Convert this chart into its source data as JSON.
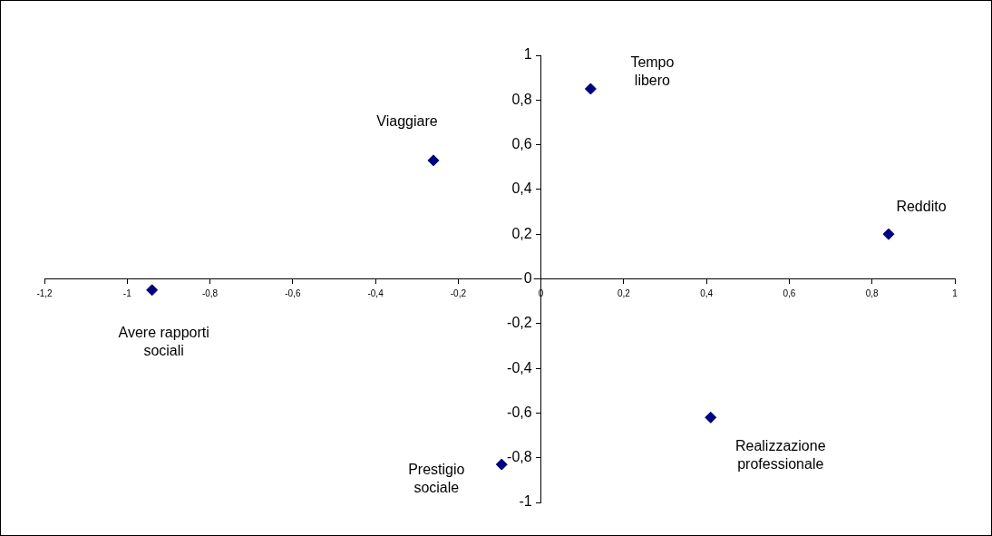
{
  "chart_data": {
    "type": "scatter",
    "marker": "diamond",
    "grid": false,
    "x": [
      0.12,
      -0.26,
      0.84,
      -0.94,
      0.41,
      -0.095
    ],
    "series": [
      {
        "color": "#000080",
        "values": [
          0.85,
          0.53,
          0.2,
          -0.05,
          -0.62,
          -0.83
        ]
      }
    ],
    "xlim": [
      -1.2,
      1
    ],
    "ylim": [
      -1,
      1
    ],
    "xticks": [
      {
        "value": -1.2,
        "label": "-1,2"
      },
      -1,
      {
        "value": -0.8,
        "label": "-0,8"
      },
      {
        "value": -0.6,
        "label": "-0,6"
      },
      {
        "value": -0.4,
        "label": "-0,4"
      },
      {
        "value": -0.2,
        "label": "-0,2"
      },
      0,
      {
        "value": 0.2,
        "label": "0,2"
      },
      {
        "value": 0.4,
        "label": "0,4"
      },
      {
        "value": 0.6,
        "label": "0,6"
      },
      {
        "value": 0.8,
        "label": "0,8"
      },
      1
    ],
    "yticks": [
      -1,
      {
        "value": -0.8,
        "label": "-0,8"
      },
      {
        "value": -0.6,
        "label": "-0,6"
      },
      {
        "value": -0.4,
        "label": "-0,4"
      },
      {
        "value": -0.2,
        "label": "-0,2"
      },
      0,
      {
        "value": 0.2,
        "label": "0,2"
      },
      {
        "value": 0.4,
        "label": "0,4"
      },
      {
        "value": 0.6,
        "label": "0,6"
      },
      {
        "value": 0.8,
        "label": "0,8"
      },
      1
    ],
    "annotations": [
      {
        "text": "Tempo\nlibero",
        "x": 0.12,
        "y": 0.85
      },
      {
        "text": "Viaggiare",
        "x": -0.26,
        "y": 0.53
      },
      {
        "text": "Reddito",
        "x": 0.84,
        "y": 0.2
      },
      {
        "text": "Avere rapporti\nsociali",
        "x": -0.94,
        "y": -0.05
      },
      {
        "text": "Realizzazione\nprofessionale",
        "x": 0.41,
        "y": -0.62
      },
      {
        "text": "Prestigio\nsociale",
        "x": -0.095,
        "y": -0.83
      }
    ]
  }
}
